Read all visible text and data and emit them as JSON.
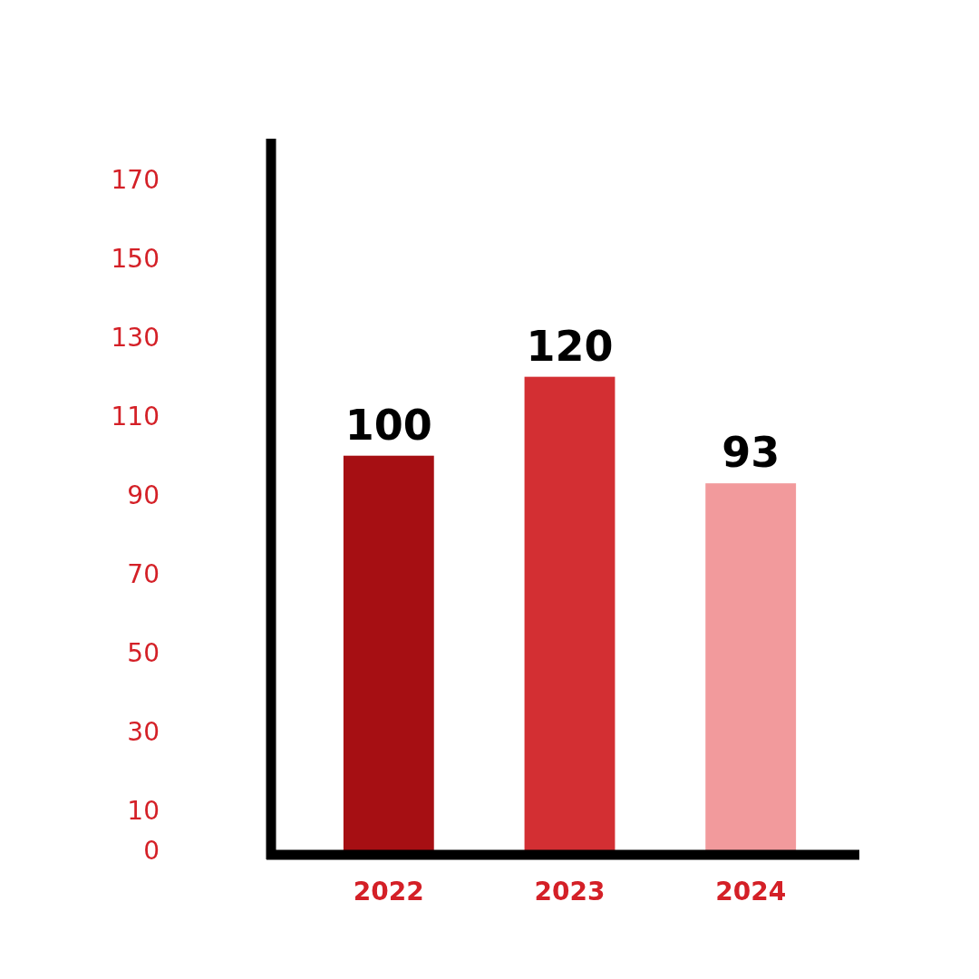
{
  "chart_data": {
    "type": "bar",
    "categories": [
      "2022",
      "2023",
      "2024"
    ],
    "values": [
      100,
      120,
      93
    ],
    "colors": [
      "#a60f13",
      "#d32f33",
      "#f29a9c"
    ],
    "ylim": [
      0,
      170
    ],
    "yticks": [
      0,
      10,
      30,
      50,
      70,
      90,
      110,
      130,
      150,
      170
    ],
    "data_labels": true,
    "grid": false
  }
}
